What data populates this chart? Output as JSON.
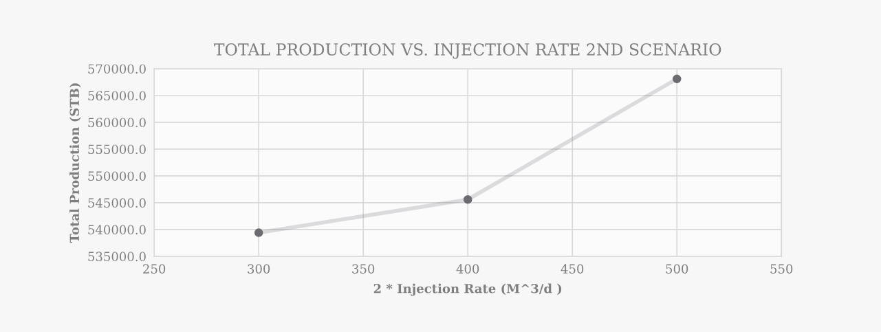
{
  "chart_data": {
    "type": "line",
    "title": "TOTAL PRODUCTION VS. INJECTION RATE 2ND SCENARIO",
    "xlabel": "2 * Injection Rate (M^3/d )",
    "ylabel": "Total Production (STB)",
    "x": [
      300,
      400,
      500
    ],
    "series": [
      {
        "color": "#6b6b70",
        "values": [
          539400,
          545600,
          568100
        ]
      }
    ],
    "xlim": [
      250,
      550
    ],
    "xticks": [
      250,
      300,
      350,
      400,
      450,
      500,
      550
    ],
    "ylim": [
      535000,
      570000
    ],
    "yticks": [
      {
        "value": 535000,
        "label": "535000.0"
      },
      {
        "value": 540000,
        "label": "540000.0"
      },
      {
        "value": 545000,
        "label": "545000.0"
      },
      {
        "value": 550000,
        "label": "550000.0"
      },
      {
        "value": 555000,
        "label": "555000.0"
      },
      {
        "value": 560000,
        "label": "560000.0"
      },
      {
        "value": 565000,
        "label": "565000.0"
      },
      {
        "value": 570000,
        "label": "570000.0"
      }
    ],
    "grid": true,
    "marker": "circle",
    "legend": false
  }
}
